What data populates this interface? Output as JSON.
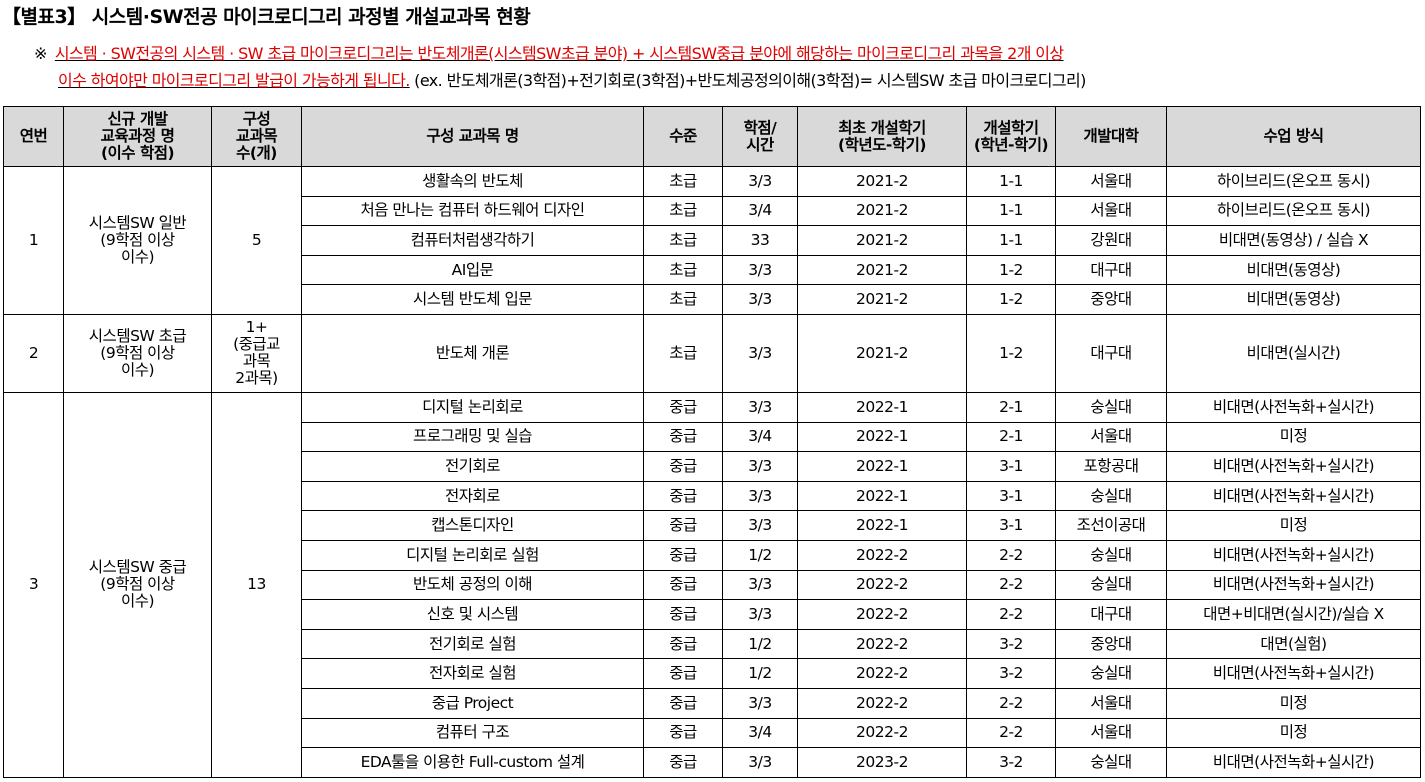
{
  "title": "【별표3】 시스템·SW전공 마이크로디그리 과정별 개설교과목 현황",
  "note": {
    "mark": "※",
    "red_line1": "시스템 · SW전공의 시스템 · SW 초급 마이크로디그리는 반도체개론(시스템SW초급 분야) + 시스템SW중급 분야에 해당하는 마이크로디그리 과목을 2개 이상",
    "red_line2": "이수 하여야만 마이크로디그리 발급이 가능하게 됩니다.",
    "example": " (ex. 반도체개론(3학점)+전기회로(3학점)+반도체공정의이해(3학점)= 시스템SW 초급 마이크로디그리)"
  },
  "headers": [
    "연번",
    "신규 개발\n교육과정 명\n(이수 학점)",
    "구성\n교과목\n수(개)",
    "구성 교과목 명",
    "수준",
    "학점/\n시간",
    "최초 개설학기\n(학년도-학기)",
    "개설학기\n(학년-학기)",
    "개발대학",
    "수업 방식"
  ],
  "groups": [
    {
      "no": "1",
      "program": "시스템SW 일반\n(9학점 이상\n이수)",
      "count": "5",
      "rows": [
        [
          "생활속의 반도체",
          "초급",
          "3/3",
          "2021-2",
          "1-1",
          "서울대",
          "하이브리드(온오프 동시)"
        ],
        [
          "처음 만나는 컴퓨터 하드웨어 디자인",
          "초급",
          "3/4",
          "2021-2",
          "1-1",
          "서울대",
          "하이브리드(온오프 동시)"
        ],
        [
          "컴퓨터처럼생각하기",
          "초급",
          "33",
          "2021-2",
          "1-1",
          "강원대",
          "비대면(동영상) / 실습 X"
        ],
        [
          "AI입문",
          "초급",
          "3/3",
          "2021-2",
          "1-2",
          "대구대",
          "비대면(동영상)"
        ],
        [
          "시스템 반도체 입문",
          "초급",
          "3/3",
          "2021-2",
          "1-2",
          "중앙대",
          "비대면(동영상)"
        ]
      ]
    },
    {
      "no": "2",
      "program": "시스템SW 초급\n(9학점 이상\n이수)",
      "count": "1+\n(중급교\n과목\n2과목)",
      "rows": [
        [
          "반도체 개론",
          "초급",
          "3/3",
          "2021-2",
          "1-2",
          "대구대",
          "비대면(실시간)"
        ]
      ]
    },
    {
      "no": "3",
      "program": "시스템SW 중급\n(9학점 이상\n이수)",
      "count": "13",
      "rows": [
        [
          "디지털 논리회로",
          "중급",
          "3/3",
          "2022-1",
          "2-1",
          "숭실대",
          "비대면(사전녹화+실시간)"
        ],
        [
          "프로그래밍 및 실습",
          "중급",
          "3/4",
          "2022-1",
          "2-1",
          "서울대",
          "미정"
        ],
        [
          "전기회로",
          "중급",
          "3/3",
          "2022-1",
          "3-1",
          "포항공대",
          "비대면(사전녹화+실시간)"
        ],
        [
          "전자회로",
          "중급",
          "3/3",
          "2022-1",
          "3-1",
          "숭실대",
          "비대면(사전녹화+실시간)"
        ],
        [
          "캡스톤디자인",
          "중급",
          "3/3",
          "2022-1",
          "3-1",
          "조선이공대",
          "미정"
        ],
        [
          "디지털 논리회로 실험",
          "중급",
          "1/2",
          "2022-2",
          "2-2",
          "숭실대",
          "비대면(사전녹화+실시간)"
        ],
        [
          "반도체 공정의 이해",
          "중급",
          "3/3",
          "2022-2",
          "2-2",
          "숭실대",
          "비대면(사전녹화+실시간)"
        ],
        [
          "신호 및 시스템",
          "중급",
          "3/3",
          "2022-2",
          "2-2",
          "대구대",
          "대면+비대면(실시간)/실습 X"
        ],
        [
          "전기회로 실험",
          "중급",
          "1/2",
          "2022-2",
          "3-2",
          "중앙대",
          "대면(실험)"
        ],
        [
          "전자회로 실험",
          "중급",
          "1/2",
          "2022-2",
          "3-2",
          "숭실대",
          "비대면(사전녹화+실시간)"
        ],
        [
          "중급 Project",
          "중급",
          "3/3",
          "2022-2",
          "2-2",
          "서울대",
          "미정"
        ],
        [
          "컴퓨터 구조",
          "중급",
          "3/4",
          "2022-2",
          "2-2",
          "서울대",
          "미정"
        ],
        [
          "EDA툴을 이용한 Full-custom 설계",
          "중급",
          "3/3",
          "2023-2",
          "3-2",
          "숭실대",
          "비대면(사전녹화+실시간)"
        ]
      ]
    }
  ]
}
